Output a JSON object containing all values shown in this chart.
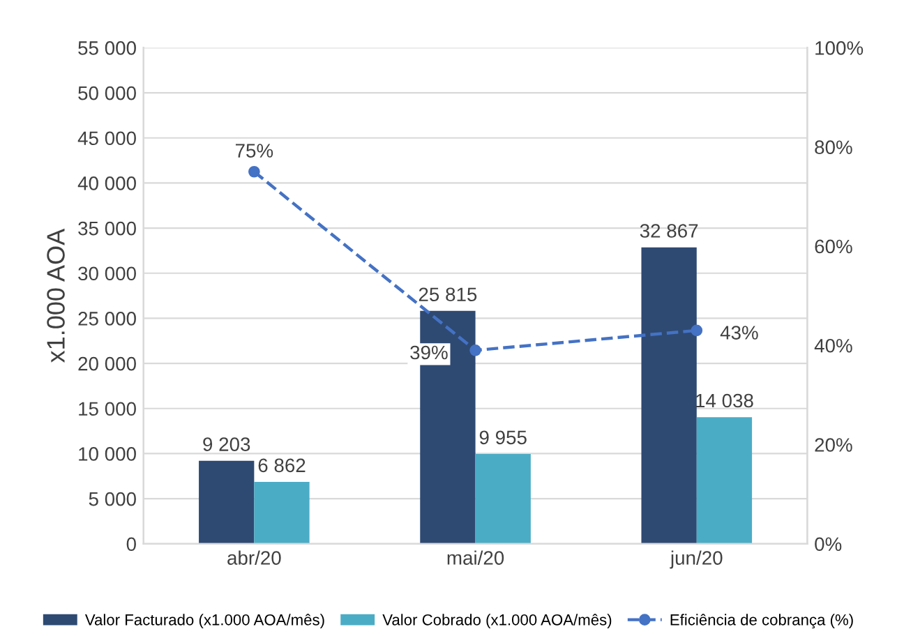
{
  "chart_data": {
    "type": "bar",
    "categories": [
      "abr/20",
      "mai/20",
      "jun/20"
    ],
    "ylabel": "x1.000 AOA",
    "series": [
      {
        "name": "Valor Facturado (x1.000 AOA/mês)",
        "color": "#2e4a73",
        "values": [
          9203,
          25815,
          32867
        ],
        "value_labels": [
          "9 203",
          "25 815",
          "32 867"
        ]
      },
      {
        "name": "Valor Cobrado (x1.000 AOA/mês)",
        "color": "#4bacc6",
        "values": [
          6862,
          9955,
          14038
        ],
        "value_labels": [
          "6 862",
          "9 955",
          "14 038"
        ]
      },
      {
        "name": "Eficiência de cobrança (%)",
        "type": "line",
        "axis": "y2",
        "color": "#4472c4",
        "values": [
          75,
          39,
          43
        ],
        "value_labels": [
          "75%",
          "39%",
          "43%"
        ],
        "marker": "circle",
        "line_style": "dashed"
      }
    ],
    "ylim": [
      0,
      55000
    ],
    "yticks": [
      0,
      {
        "value": 5000,
        "label": "5 000"
      },
      {
        "value": 10000,
        "label": "10 000"
      },
      {
        "value": 15000,
        "label": "15 000"
      },
      {
        "value": 20000,
        "label": "20 000"
      },
      {
        "value": 25000,
        "label": "25 000"
      },
      {
        "value": 30000,
        "label": "30 000"
      },
      {
        "value": 35000,
        "label": "35 000"
      },
      {
        "value": 40000,
        "label": "40 000"
      },
      {
        "value": 45000,
        "label": "45 000"
      },
      {
        "value": 50000,
        "label": "50 000"
      },
      {
        "value": 55000,
        "label": "55 000"
      }
    ],
    "y2lim": [
      0,
      100
    ],
    "y2ticks": [
      {
        "value": 0,
        "label": "0%"
      },
      {
        "value": 20,
        "label": "20%"
      },
      {
        "value": 40,
        "label": "40%"
      },
      {
        "value": 60,
        "label": "60%"
      },
      {
        "value": 80,
        "label": "80%"
      },
      {
        "value": 100,
        "label": "100%"
      }
    ],
    "grid": "y",
    "legend": "bottom"
  }
}
